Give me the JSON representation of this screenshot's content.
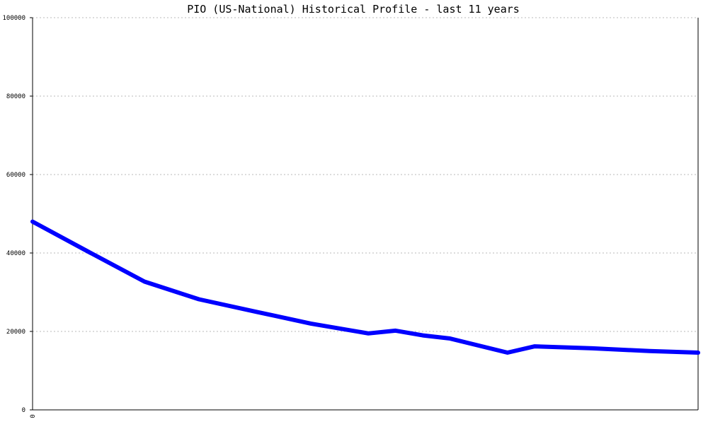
{
  "chart_data": {
    "type": "line",
    "title": "PIO (US-National) Historical Profile - last 11 years",
    "xlabel": "",
    "ylabel": "",
    "ylim": [
      0,
      100000
    ],
    "yticks": [
      0,
      20000,
      40000,
      60000,
      80000,
      100000
    ],
    "ytick_labels": [
      "0",
      "20000",
      "40000",
      "60000",
      "80000",
      "100000"
    ],
    "xticks": [
      0
    ],
    "xtick_labels": [
      "0"
    ],
    "xlim": [
      0,
      11
    ],
    "grid": true,
    "series": [
      {
        "color": "#0000ff",
        "x": [
          0,
          0.9,
          1.85,
          2.75,
          3.7,
          4.6,
          5.55,
          6.0,
          6.45,
          6.9,
          7.85,
          8.3,
          9.25,
          10.2,
          11.0
        ],
        "y": [
          48000,
          40500,
          32700,
          28200,
          25000,
          22000,
          19500,
          20200,
          19000,
          18200,
          14600,
          16200,
          15700,
          15000,
          14600
        ]
      }
    ]
  }
}
